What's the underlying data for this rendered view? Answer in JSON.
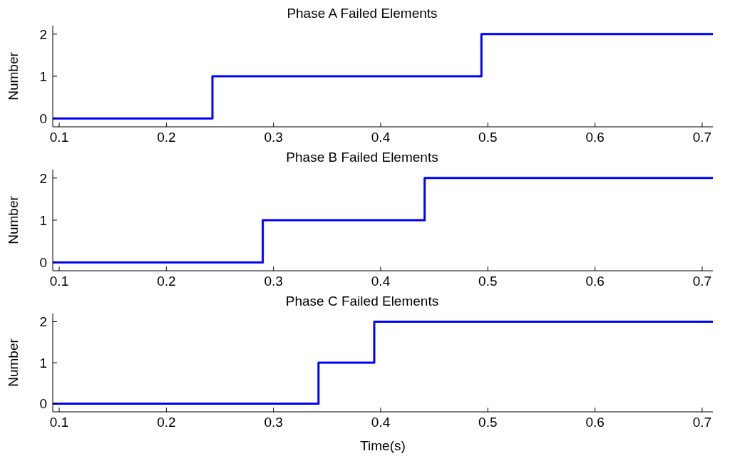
{
  "chart_data": [
    {
      "type": "step",
      "title": "Phase A Failed Elements",
      "ylabel": "Number",
      "x": [
        0.094,
        0.243,
        0.494,
        0.71
      ],
      "series": [
        {
          "color": "#0000ff",
          "values": [
            0,
            1,
            2,
            2
          ]
        }
      ],
      "xlim": [
        0.094,
        0.71
      ],
      "xticks": [
        0.1,
        0.2,
        0.3,
        0.4,
        0.5,
        0.6,
        0.7
      ],
      "ylim": [
        -0.2,
        2.2
      ],
      "yticks": [
        0,
        1,
        2
      ],
      "grid": false,
      "legend": false
    },
    {
      "type": "step",
      "title": "Phase B Failed Elements",
      "ylabel": "Number",
      "x": [
        0.094,
        0.29,
        0.441,
        0.71
      ],
      "series": [
        {
          "color": "#0000ff",
          "values": [
            0,
            1,
            2,
            2
          ]
        }
      ],
      "xlim": [
        0.094,
        0.71
      ],
      "xticks": [
        0.1,
        0.2,
        0.3,
        0.4,
        0.5,
        0.6,
        0.7
      ],
      "ylim": [
        -0.2,
        2.2
      ],
      "yticks": [
        0,
        1,
        2
      ],
      "grid": false,
      "legend": false
    },
    {
      "type": "step",
      "title": "Phase C Failed Elements",
      "ylabel": "Number",
      "xlabel": "Time(s)",
      "x": [
        0.094,
        0.342,
        0.394,
        0.71
      ],
      "series": [
        {
          "color": "#0000ff",
          "values": [
            0,
            1,
            2,
            2
          ]
        }
      ],
      "xlim": [
        0.094,
        0.71
      ],
      "xticks": [
        0.1,
        0.2,
        0.3,
        0.4,
        0.5,
        0.6,
        0.7
      ],
      "ylim": [
        -0.2,
        2.2
      ],
      "yticks": [
        0,
        1,
        2
      ],
      "grid": false,
      "legend": false
    }
  ]
}
